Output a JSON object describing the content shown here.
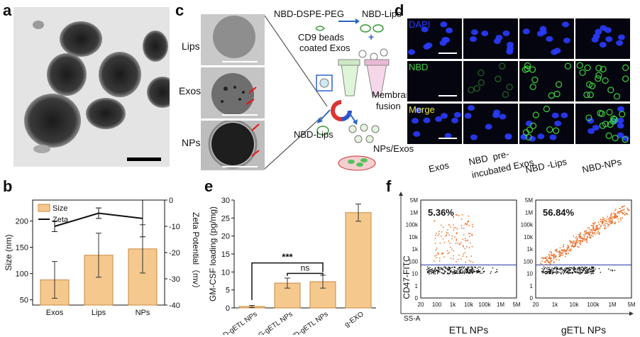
{
  "panels": {
    "a": "a",
    "b": "b",
    "c": "c",
    "d": "d",
    "e": "e",
    "f": "f"
  },
  "c": {
    "rows": [
      "Lips",
      "Exos",
      "NPs"
    ],
    "schematic": {
      "nbd_dspe_peg": "NBD-DSPE-PEG",
      "nbd_lips_top": "NBD-Lips",
      "beads_line1": "CD9 beads",
      "beads_line2": "coated Exos",
      "membrane_line1": "Membrane",
      "membrane_line2": "fusion",
      "nbd_lips_bottom": "NBD-Lips",
      "nps_exos": "NPs/Exos"
    }
  },
  "d": {
    "row_labels": [
      "DAPI",
      "NBD",
      "Merge"
    ],
    "col_labels": [
      "Exos",
      "NBD pre-incubated Exos",
      "NBD -Lips",
      "NBD-NPs"
    ],
    "col_label_nbd_pre_line1": "NBD  pre-",
    "col_label_nbd_pre_line2": "incubated Exos",
    "colors": {
      "dapi": "#2a3cff",
      "nbd": "#3fd23f",
      "merge_label": "#e8e84a"
    }
  },
  "chart_b": {
    "type": "bar",
    "categories": [
      "Exos",
      "Lips",
      "NPs"
    ],
    "series": [
      {
        "name": "Size",
        "values": [
          88,
          135,
          147
        ],
        "errors": [
          35,
          42,
          46
        ]
      },
      {
        "name": "Zeta",
        "values": [
          -10,
          -5,
          -7
        ],
        "errors": [
          2,
          2,
          7
        ]
      }
    ],
    "ylabel": "Size (nm)",
    "y2label": "Zeta Potential（mv）",
    "ylim": [
      40,
      240
    ],
    "yticks": [
      "50",
      "100",
      "150",
      "200"
    ],
    "y2lim": [
      -40,
      0
    ],
    "y2ticks": [
      "0",
      "-10",
      "-20",
      "-30",
      "-40"
    ],
    "legend": "top-left",
    "colors": {
      "bar": "#f5c88e",
      "line": "#111111"
    }
  },
  "chart_e": {
    "type": "bar",
    "categories": [
      "D-gETL NPs",
      "G-gETL NPs",
      "G/D-gETL NPs",
      "g-EXO"
    ],
    "values": [
      0.4,
      6.9,
      7.3,
      26.5
    ],
    "errors": [
      0.3,
      1.4,
      1.8,
      2.4
    ],
    "ylabel": "GM-CSF loading (pg/mg)",
    "ylim": [
      0,
      30
    ],
    "yticks": [
      "0",
      "5",
      "10",
      "15",
      "20",
      "25",
      "30"
    ],
    "significance": [
      "***",
      "ns"
    ],
    "colors": {
      "bar": "#f5c88e"
    }
  },
  "chart_f": {
    "type": "scatter",
    "plots": [
      {
        "percentage": "5.36%",
        "name": "ETL NPs"
      },
      {
        "percentage": "56.84%",
        "name": "gETL NPs"
      }
    ],
    "ylabel": "CD47-FITC",
    "xlabel": "SS-A",
    "xticks_left": [
      "20",
      "100",
      "1k",
      "10k",
      "100k",
      "1M",
      "5M"
    ],
    "xticks_right": [
      "20",
      "1k",
      "10k",
      "100k",
      "1M",
      "5M"
    ],
    "yticks": [
      "5M",
      "1M",
      "100k",
      "10k",
      "1k",
      "100",
      "10",
      "1",
      "0"
    ],
    "colors": {
      "pos": "#e96a1e",
      "neg": "#111111",
      "gate": "#2233aa"
    }
  }
}
